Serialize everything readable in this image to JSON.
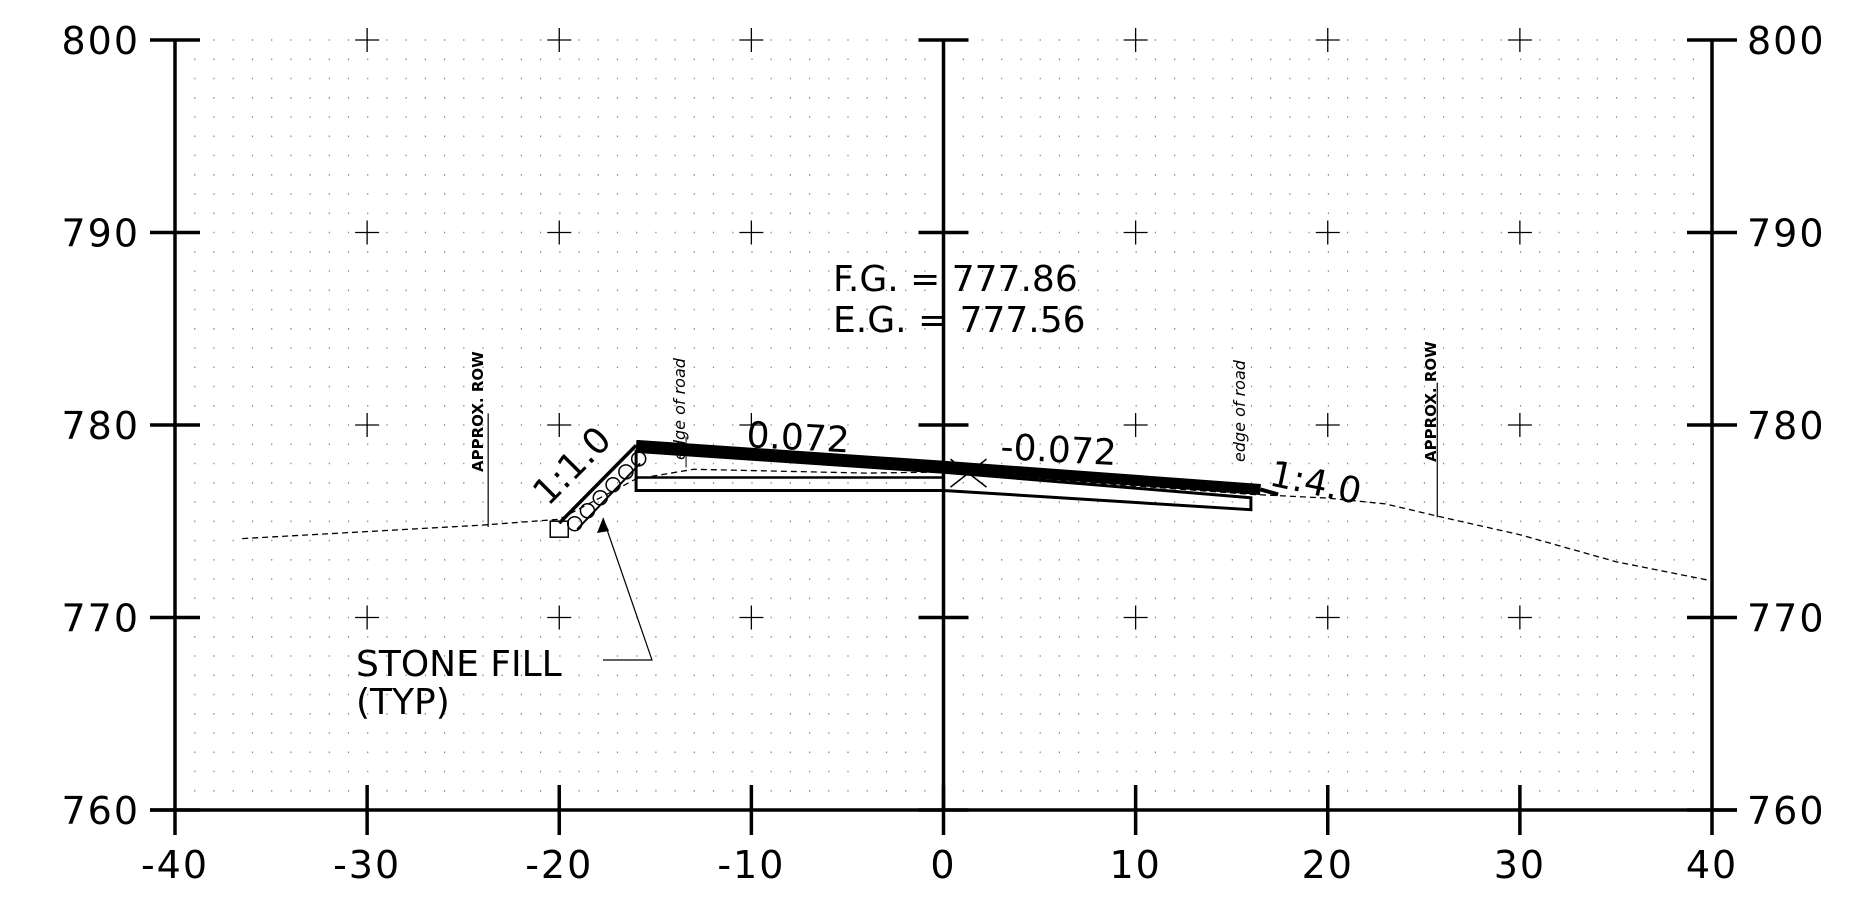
{
  "drawing": {
    "type": "cross-section",
    "axes": {
      "x_ticks": [
        "-40",
        "-30",
        "-20",
        "-10",
        "0",
        "10",
        "20",
        "30",
        "40"
      ],
      "y_ticks_left": [
        "800",
        "790",
        "780",
        "770",
        "760"
      ],
      "y_ticks_right": [
        "800",
        "790",
        "780",
        "770",
        "760"
      ],
      "x_range": [
        -40,
        40
      ],
      "y_range": [
        760,
        800
      ],
      "grid": "dot grid with crosshair marks"
    },
    "grade_labels": {
      "fg": "F.G. = 777.86",
      "eg": "E.G. = 777.56"
    },
    "slopes": {
      "left_cross_slope": "0.072",
      "right_cross_slope": "-0.072",
      "left_side_slope": "1:1.0",
      "right_side_slope": "1:4.0"
    },
    "annotations": {
      "edge_left": "edge of road",
      "edge_right": "edge of road",
      "row_left": "APPROX. ROW",
      "row_right": "APPROX. ROW",
      "stone_fill_line1": "STONE FILL",
      "stone_fill_line2": "(TYP)"
    },
    "profiles": {
      "existing_ground": [
        [
          -36.5,
          774.1
        ],
        [
          -24,
          774.8
        ],
        [
          -20,
          775.1
        ],
        [
          -16,
          777.2
        ],
        [
          -13,
          777.7
        ],
        [
          -4,
          777.5
        ],
        [
          0,
          777.56
        ],
        [
          16,
          776.4
        ],
        [
          20,
          776.2
        ],
        [
          23,
          775.9
        ],
        [
          26,
          775.2
        ],
        [
          30,
          774.3
        ],
        [
          35,
          772.9
        ],
        [
          40,
          771.9
        ]
      ],
      "finished_grade": [
        [
          -16,
          778.94
        ],
        [
          0,
          777.86
        ],
        [
          16.5,
          776.65
        ]
      ],
      "pavement_base": [
        [
          -16,
          776.6
        ],
        [
          0,
          776.6
        ],
        [
          16,
          775.6
        ]
      ],
      "left_fill_slope": [
        [
          -16,
          778.94
        ],
        [
          -20,
          774.9
        ]
      ],
      "right_fill_slope": [
        [
          16.5,
          776.65
        ],
        [
          17,
          776.5
        ]
      ],
      "row_left_x": -23.7,
      "row_right_x": 25.7,
      "edge_left_x": -13.4,
      "edge_right_x": 15.7,
      "centerline_marker": [
        1.3,
        777.5
      ]
    }
  }
}
